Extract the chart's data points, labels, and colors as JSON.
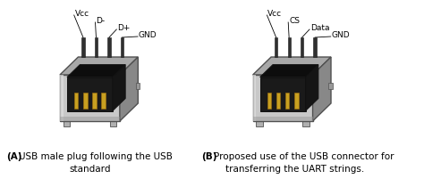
{
  "fig_width": 4.74,
  "fig_height": 2.1,
  "dpi": 100,
  "bg_color": "#ffffff",
  "left_pins": [
    "Vcc",
    "D-",
    "D+",
    "GND"
  ],
  "right_pins": [
    "Vcc",
    "CS",
    "Data",
    "GND"
  ],
  "caption_left_bold": "(A)",
  "caption_left_text": " USB male plug following the USB",
  "caption_left_line2": "standard",
  "caption_right_bold": "(B)",
  "caption_right_text": " Proposed use of the USB connector for",
  "caption_right_line2": "transferring the UART strings.",
  "font_size_caption": 7.5,
  "font_size_label": 6.5
}
